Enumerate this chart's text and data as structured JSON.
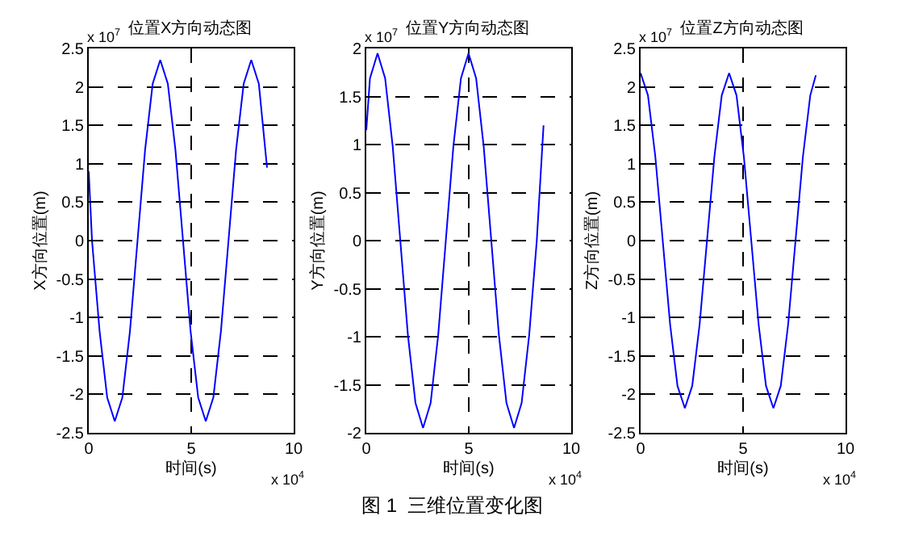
{
  "chart_data": [
    {
      "type": "line",
      "title": "位置X方向动态图",
      "xlabel": "时间(s)",
      "ylabel": "X方向位置(m)",
      "annotations": [
        "x 10$^{7}$",
        "x 10$^{4}$"
      ],
      "x": [
        0,
        0.16,
        0.53,
        0.9,
        1.27,
        1.64,
        2.01,
        2.38,
        2.75,
        3.12,
        3.49,
        3.86,
        4.23,
        4.6,
        4.97,
        5.34,
        5.71,
        6.08,
        6.45,
        6.82,
        7.19,
        7.56,
        7.93,
        8.3,
        8.7
      ],
      "series": [
        {
          "color": "#0000ff",
          "values": [
            0.9,
            0,
            -1.18,
            -2.04,
            -2.35,
            -2.04,
            -1.18,
            0,
            1.18,
            2.04,
            2.35,
            2.04,
            1.18,
            0,
            -1.18,
            -2.04,
            -2.35,
            -2.04,
            -1.18,
            0,
            1.18,
            2.04,
            2.35,
            2.04,
            0.95
          ]
        }
      ],
      "xlim": [
        0,
        10
      ],
      "xticks": [
        0,
        5,
        10
      ],
      "ylim": [
        -2.5,
        2.5
      ],
      "yticks": [
        -2.5,
        -2,
        -1.5,
        -1,
        -0.5,
        0,
        0.5,
        1,
        1.5,
        2,
        2.5
      ],
      "grid": true
    },
    {
      "type": "line",
      "title": "位置Y方向动态图",
      "xlabel": "时间(s)",
      "ylabel": "Y方向位置(m)",
      "annotations": [
        "x 10$^{7}$",
        "x 10$^{4}$",
        "图 1  三维位置变化图"
      ],
      "x": [
        0,
        0.18,
        0.55,
        0.92,
        1.29,
        1.66,
        2.03,
        2.4,
        2.77,
        3.14,
        3.51,
        3.88,
        4.25,
        4.62,
        4.99,
        5.36,
        5.73,
        6.1,
        6.47,
        6.84,
        7.21,
        7.58,
        7.95,
        8.32,
        8.65
      ],
      "series": [
        {
          "color": "#0000ff",
          "values": [
            1.15,
            1.69,
            1.95,
            1.69,
            0.98,
            0,
            -0.98,
            -1.69,
            -1.95,
            -1.69,
            -0.98,
            0,
            0.98,
            1.69,
            1.95,
            1.69,
            0.98,
            0,
            -0.98,
            -1.69,
            -1.95,
            -1.69,
            -0.98,
            0,
            1.2
          ]
        }
      ],
      "xlim": [
        0,
        10
      ],
      "xticks": [
        0,
        5,
        10
      ],
      "ylim": [
        -2,
        2
      ],
      "yticks": [
        -2,
        -1.5,
        -1,
        -0.5,
        0,
        0.5,
        1,
        1.5,
        2
      ],
      "grid": true
    },
    {
      "type": "line",
      "title": "位置Z方向动态图",
      "xlabel": "时间(s)",
      "ylabel": "Z方向位置(m)",
      "annotations": [
        "x 10$^{7}$",
        "x 10$^{4}$"
      ],
      "x": [
        0,
        0.36,
        0.72,
        1.08,
        1.44,
        1.8,
        2.16,
        2.52,
        2.88,
        3.24,
        3.6,
        3.96,
        4.32,
        4.68,
        5.04,
        5.4,
        5.76,
        6.12,
        6.48,
        6.84,
        7.2,
        7.56,
        7.92,
        8.28,
        8.55
      ],
      "series": [
        {
          "color": "#0000ff",
          "values": [
            2.18,
            1.89,
            1.09,
            0,
            -1.09,
            -1.89,
            -2.18,
            -1.89,
            -1.09,
            0,
            1.09,
            1.89,
            2.18,
            1.89,
            1.09,
            0,
            -1.09,
            -1.89,
            -2.18,
            -1.89,
            -1.09,
            0,
            1.09,
            1.89,
            2.15
          ]
        }
      ],
      "xlim": [
        0,
        10
      ],
      "xticks": [
        0,
        5,
        10
      ],
      "ylim": [
        -2.5,
        2.5
      ],
      "yticks": [
        -2.5,
        -2,
        -1.5,
        -1,
        -0.5,
        0,
        0.5,
        1,
        1.5,
        2,
        2.5
      ],
      "grid": true
    }
  ]
}
